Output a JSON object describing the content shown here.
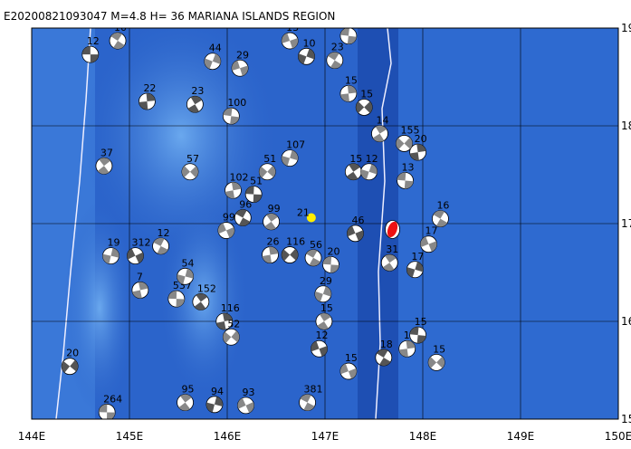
{
  "title": "E20200821093047 M=4.8 H= 36 MARIANA ISLANDS REGION",
  "map": {
    "lon_ticks": [
      {
        "value": 144,
        "label": "144E"
      },
      {
        "value": 145,
        "label": "145E"
      },
      {
        "value": 146,
        "label": "146E"
      },
      {
        "value": 147,
        "label": "147E"
      },
      {
        "value": 148,
        "label": "148E"
      },
      {
        "value": 149,
        "label": "149E"
      },
      {
        "value": 150,
        "label": "150E"
      }
    ],
    "lat_ticks": [
      {
        "value": 15,
        "label": "15N"
      },
      {
        "value": 16,
        "label": "16N"
      },
      {
        "value": 17,
        "label": "17N"
      },
      {
        "value": 18,
        "label": "18N"
      },
      {
        "value": 19,
        "label": "19N"
      }
    ],
    "lonlim": [
      144,
      150
    ],
    "latlim": [
      15,
      19
    ],
    "main_event": {
      "lon": 147.69,
      "lat": 16.94,
      "color": "#ee1111"
    },
    "epicenter": {
      "lon": 146.86,
      "lat": 17.06,
      "color": "#ffee00",
      "depth": "21"
    },
    "events": [
      {
        "lon": 144.6,
        "lat": 18.73,
        "depth": "12"
      },
      {
        "lon": 144.74,
        "lat": 17.59,
        "depth": "37"
      },
      {
        "lon": 144.81,
        "lat": 16.67,
        "depth": "19"
      },
      {
        "lon": 145.06,
        "lat": 16.67,
        "depth": "312"
      },
      {
        "lon": 145.32,
        "lat": 16.77,
        "depth": "12"
      },
      {
        "lon": 145.11,
        "lat": 16.32,
        "depth": "7"
      },
      {
        "lon": 144.39,
        "lat": 15.54,
        "depth": "20"
      },
      {
        "lon": 144.77,
        "lat": 15.07,
        "depth": "264"
      },
      {
        "lon": 145.57,
        "lat": 15.17,
        "depth": "95"
      },
      {
        "lon": 145.87,
        "lat": 15.15,
        "depth": "94"
      },
      {
        "lon": 146.19,
        "lat": 15.14,
        "depth": "93"
      },
      {
        "lon": 146.82,
        "lat": 15.17,
        "depth": "381"
      },
      {
        "lon": 145.97,
        "lat": 16.0,
        "depth": "116"
      },
      {
        "lon": 146.04,
        "lat": 15.84,
        "depth": "52"
      },
      {
        "lon": 145.48,
        "lat": 16.23,
        "depth": "537"
      },
      {
        "lon": 145.73,
        "lat": 16.2,
        "depth": "152"
      },
      {
        "lon": 145.57,
        "lat": 16.46,
        "depth": "54"
      },
      {
        "lon": 145.99,
        "lat": 16.93,
        "depth": "99"
      },
      {
        "lon": 146.16,
        "lat": 17.06,
        "depth": "96"
      },
      {
        "lon": 146.06,
        "lat": 17.34,
        "depth": "102"
      },
      {
        "lon": 146.41,
        "lat": 17.53,
        "depth": "51"
      },
      {
        "lon": 146.27,
        "lat": 17.3,
        "depth": "51"
      },
      {
        "lon": 146.45,
        "lat": 17.02,
        "depth": "99"
      },
      {
        "lon": 146.64,
        "lat": 17.67,
        "depth": "107"
      },
      {
        "lon": 147.31,
        "lat": 16.9,
        "depth": "46"
      },
      {
        "lon": 146.88,
        "lat": 16.65,
        "depth": "56"
      },
      {
        "lon": 146.44,
        "lat": 16.68,
        "depth": "26"
      },
      {
        "lon": 146.64,
        "lat": 16.68,
        "depth": "116"
      },
      {
        "lon": 147.06,
        "lat": 16.58,
        "depth": "20"
      },
      {
        "lon": 147.66,
        "lat": 16.6,
        "depth": "31"
      },
      {
        "lon": 147.92,
        "lat": 16.53,
        "depth": "17"
      },
      {
        "lon": 148.06,
        "lat": 16.79,
        "depth": "17"
      },
      {
        "lon": 148.18,
        "lat": 17.05,
        "depth": "16"
      },
      {
        "lon": 147.95,
        "lat": 17.73,
        "depth": "20"
      },
      {
        "lon": 147.81,
        "lat": 17.82,
        "depth": "155"
      },
      {
        "lon": 147.82,
        "lat": 17.44,
        "depth": "13"
      },
      {
        "lon": 147.29,
        "lat": 17.53,
        "depth": "15"
      },
      {
        "lon": 147.45,
        "lat": 17.53,
        "depth": "12"
      },
      {
        "lon": 147.24,
        "lat": 15.49,
        "depth": "15"
      },
      {
        "lon": 147.6,
        "lat": 15.63,
        "depth": "18"
      },
      {
        "lon": 147.84,
        "lat": 15.72,
        "depth": "12"
      },
      {
        "lon": 148.14,
        "lat": 15.58,
        "depth": "15"
      },
      {
        "lon": 147.95,
        "lat": 15.86,
        "depth": "15"
      },
      {
        "lon": 146.99,
        "lat": 16.0,
        "depth": "15"
      },
      {
        "lon": 146.98,
        "lat": 16.28,
        "depth": "29"
      },
      {
        "lon": 146.94,
        "lat": 15.72,
        "depth": "12"
      },
      {
        "lon": 147.1,
        "lat": 18.67,
        "depth": "23"
      },
      {
        "lon": 147.24,
        "lat": 18.33,
        "depth": "15"
      },
      {
        "lon": 147.4,
        "lat": 18.19,
        "depth": "15"
      },
      {
        "lon": 147.24,
        "lat": 18.92,
        "depth": "35"
      },
      {
        "lon": 147.56,
        "lat": 17.92,
        "depth": "14"
      },
      {
        "lon": 146.81,
        "lat": 18.71,
        "depth": "10"
      },
      {
        "lon": 146.64,
        "lat": 18.87,
        "depth": "13"
      },
      {
        "lon": 144.88,
        "lat": 18.87,
        "depth": "10"
      },
      {
        "lon": 145.18,
        "lat": 18.25,
        "depth": "22"
      },
      {
        "lon": 145.62,
        "lat": 17.53,
        "depth": "57"
      },
      {
        "lon": 146.04,
        "lat": 18.1,
        "depth": "100"
      },
      {
        "lon": 145.67,
        "lat": 18.22,
        "depth": "23"
      },
      {
        "lon": 145.85,
        "lat": 18.66,
        "depth": "44"
      },
      {
        "lon": 146.13,
        "lat": 18.59,
        "depth": "29"
      }
    ]
  }
}
